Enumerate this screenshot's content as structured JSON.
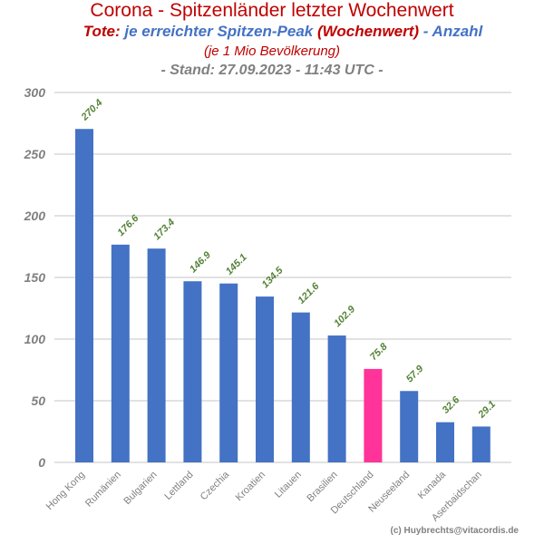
{
  "header": {
    "title": "Corona - Spitzenländer letzter Wochenwert",
    "subtitle_part1": "Tote:",
    "subtitle_part2": " je erreichter Spitzen-Peak ",
    "subtitle_part3": " (Wochenwert)",
    "subtitle_part4": " - Anzahl",
    "note": "(je 1 Mio Bevölkerung)",
    "stand": "- Stand: 27.09.2023 - 11:43 UTC -"
  },
  "credit": "(c) Huybrechts@vitacordis.de",
  "colors": {
    "bar": "#4472c4",
    "highlight": "#ff3399",
    "label": "#548235",
    "axis_text": "#808080",
    "grid": "#d9d9d9",
    "title": "#c00000"
  },
  "chart_data": {
    "type": "bar",
    "categories": [
      "Hong Kong",
      "Rumänien",
      "Bulgarien",
      "Lettland",
      "Czechia",
      "Kroatien",
      "Litauen",
      "Brasilien",
      "Deutschland",
      "Neuseeland",
      "Kanada",
      "Aserbaidschan"
    ],
    "values": [
      270.4,
      176.6,
      173.4,
      146.9,
      145.1,
      134.5,
      121.6,
      102.9,
      75.8,
      57.9,
      32.6,
      29.1
    ],
    "value_labels": [
      "270.4",
      "176.6",
      "173.4",
      "146.9",
      "145.1",
      "134.5",
      "121.6",
      "102.9",
      "75.8",
      "57.9",
      "32.6",
      "29.1"
    ],
    "highlight_category": "Deutschland",
    "ylim": [
      0,
      300
    ],
    "yticks": [
      0,
      50,
      100,
      150,
      200,
      250,
      300
    ],
    "ytick_labels": [
      "0",
      "50",
      "100",
      "150",
      "200",
      "250",
      "300"
    ],
    "grid": true,
    "legend": "none"
  }
}
